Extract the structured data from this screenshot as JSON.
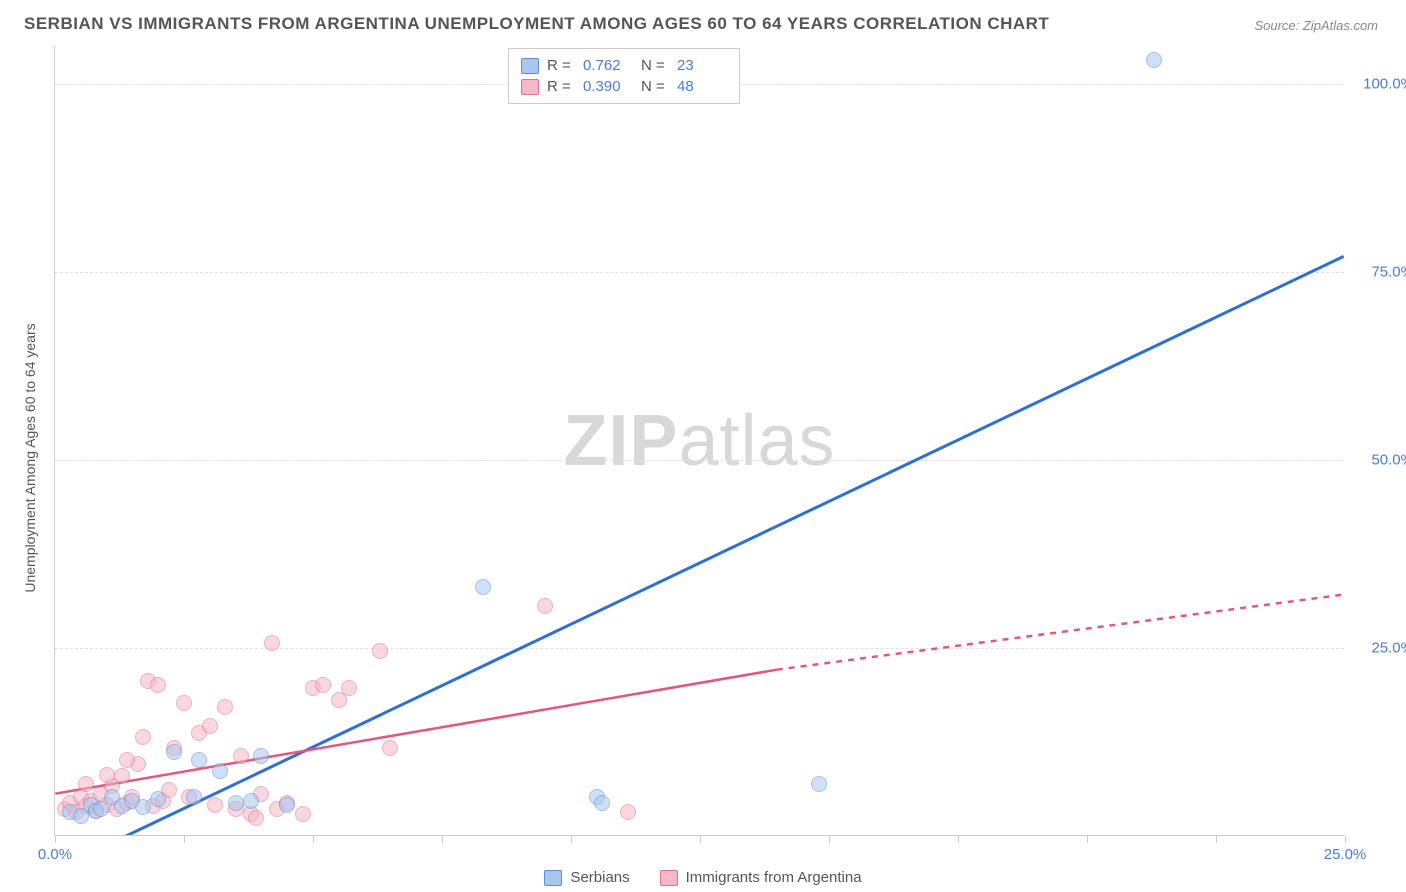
{
  "title": "SERBIAN VS IMMIGRANTS FROM ARGENTINA UNEMPLOYMENT AMONG AGES 60 TO 64 YEARS CORRELATION CHART",
  "source": "Source: ZipAtlas.com",
  "ylabel": "Unemployment Among Ages 60 to 64 years",
  "watermark_a": "ZIP",
  "watermark_b": "atlas",
  "chart": {
    "type": "scatter",
    "background_color": "#ffffff",
    "grid_color": "#e0e0e0",
    "gridline_dash": "4,4",
    "axis_color": "#cccccc",
    "tick_label_color": "#4a7dd4",
    "tick_fontsize": 15,
    "xlim": [
      0,
      25
    ],
    "ylim": [
      0,
      105
    ],
    "xticks": [
      0.0,
      2.5,
      5.0,
      7.5,
      10.0,
      12.5,
      15.0,
      17.5,
      20.0,
      22.5,
      25.0
    ],
    "xtick_labels_shown": {
      "0": "0.0%",
      "25": "25.0%"
    },
    "yticks": [
      25.0,
      50.0,
      75.0,
      100.0
    ],
    "ytick_labels": [
      "25.0%",
      "50.0%",
      "75.0%",
      "100.0%"
    ],
    "point_radius": 8,
    "point_opacity": 0.55,
    "point_stroke_width": 1
  },
  "series": {
    "serbians": {
      "label": "Serbians",
      "color_fill": "#a9c6f0",
      "color_stroke": "#5b8fd6",
      "trend_color": "#2e6fd6",
      "trend_width": 3,
      "trend_style": "solid",
      "trend": {
        "x1": 0.8,
        "y1": -2,
        "x2": 25,
        "y2": 77
      },
      "R": "0.762",
      "N": "23",
      "points": [
        [
          0.3,
          3
        ],
        [
          0.5,
          2.5
        ],
        [
          0.7,
          4
        ],
        [
          0.8,
          3.2
        ],
        [
          0.9,
          3.5
        ],
        [
          1.1,
          5
        ],
        [
          1.3,
          3.8
        ],
        [
          1.5,
          4.5
        ],
        [
          1.7,
          3.7
        ],
        [
          2.0,
          4.8
        ],
        [
          2.3,
          11
        ],
        [
          2.7,
          5
        ],
        [
          2.8,
          10
        ],
        [
          3.2,
          8.5
        ],
        [
          3.5,
          4.2
        ],
        [
          3.8,
          4.5
        ],
        [
          4.0,
          10.5
        ],
        [
          4.5,
          4.0
        ],
        [
          8.3,
          33
        ],
        [
          10.5,
          5
        ],
        [
          10.6,
          4.2
        ],
        [
          14.8,
          6.8
        ],
        [
          21.3,
          103
        ]
      ]
    },
    "immigrants": {
      "label": "Immigrants from Argentina",
      "color_fill": "#f4b8c6",
      "color_stroke": "#e07090",
      "trend_color": "#e5567e",
      "trend_width": 2.5,
      "trend_solid": {
        "x1": 0,
        "y1": 5.5,
        "x2": 14,
        "y2": 22
      },
      "trend_dash": {
        "x1": 14,
        "y1": 22,
        "x2": 25,
        "y2": 32
      },
      "R": "0.390",
      "N": "48",
      "points": [
        [
          0.2,
          3.5
        ],
        [
          0.3,
          4.2
        ],
        [
          0.4,
          3.0
        ],
        [
          0.5,
          5.0
        ],
        [
          0.6,
          3.8
        ],
        [
          0.7,
          4.5
        ],
        [
          0.8,
          3.2
        ],
        [
          0.9,
          5.5
        ],
        [
          1.0,
          4.0
        ],
        [
          1.1,
          6.5
        ],
        [
          1.2,
          3.5
        ],
        [
          1.3,
          7.8
        ],
        [
          1.4,
          4.2
        ],
        [
          1.5,
          5.0
        ],
        [
          1.7,
          13.0
        ],
        [
          1.8,
          20.5
        ],
        [
          1.9,
          3.8
        ],
        [
          2.0,
          20.0
        ],
        [
          2.1,
          4.5
        ],
        [
          2.3,
          11.5
        ],
        [
          2.5,
          17.5
        ],
        [
          2.6,
          5.0
        ],
        [
          2.8,
          13.5
        ],
        [
          3.0,
          14.5
        ],
        [
          3.1,
          4.0
        ],
        [
          3.3,
          17.0
        ],
        [
          3.5,
          3.5
        ],
        [
          3.8,
          2.8
        ],
        [
          3.9,
          2.2
        ],
        [
          4.0,
          5.5
        ],
        [
          4.2,
          25.5
        ],
        [
          4.3,
          3.5
        ],
        [
          4.5,
          4.2
        ],
        [
          4.8,
          2.8
        ],
        [
          5.0,
          19.5
        ],
        [
          5.2,
          20.0
        ],
        [
          5.5,
          18.0
        ],
        [
          5.7,
          19.5
        ],
        [
          6.3,
          24.5
        ],
        [
          6.5,
          11.5
        ],
        [
          9.5,
          30.5
        ],
        [
          11.1,
          3.0
        ],
        [
          1.0,
          8.0
        ],
        [
          1.6,
          9.5
        ],
        [
          0.6,
          6.8
        ],
        [
          2.2,
          6.0
        ],
        [
          1.4,
          10.0
        ],
        [
          3.6,
          10.5
        ]
      ]
    }
  },
  "legend_top": [
    {
      "swatch": "serbians",
      "R_label": "R =",
      "R": "0.762",
      "N_label": "N =",
      "N": "23"
    },
    {
      "swatch": "immigrants",
      "R_label": "R =",
      "R": "0.390",
      "N_label": "N =",
      "N": "48"
    }
  ],
  "legend_bottom": [
    {
      "swatch": "serbians",
      "label": "Serbians"
    },
    {
      "swatch": "immigrants",
      "label": "Immigrants from Argentina"
    }
  ]
}
